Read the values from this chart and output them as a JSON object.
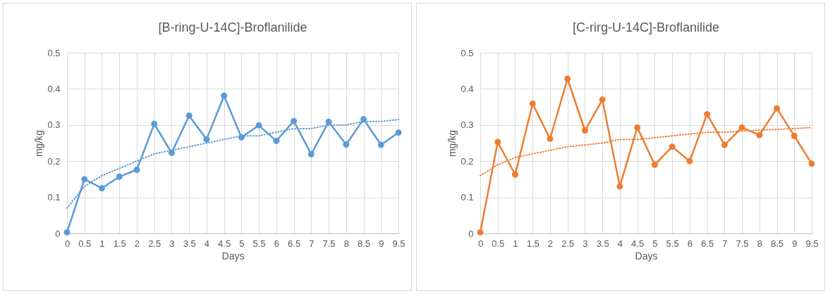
{
  "chart_data": [
    {
      "type": "line",
      "title": "[B-ring-U-14C]-Broflanilide",
      "xlabel": "Days",
      "ylabel": "mg/kg",
      "categories": [
        "0",
        "0.5",
        "1",
        "1.5",
        "2",
        "2.5",
        "3",
        "3.5",
        "4",
        "4.5",
        "5",
        "5.5",
        "6",
        "6.5",
        "7",
        "7.5",
        "8",
        "8.5",
        "9",
        "9.5"
      ],
      "ylim": [
        0,
        0.5
      ],
      "yticks": [
        0,
        0.1,
        0.2,
        0.3,
        0.4,
        0.5
      ],
      "grid": true,
      "marker": "circle",
      "line_style": "solid",
      "series": [
        {
          "color": "#5b9bd5",
          "values": [
            0.003,
            0.15,
            0.125,
            0.157,
            0.176,
            0.303,
            0.223,
            0.326,
            0.26,
            0.381,
            0.266,
            0.299,
            0.256,
            0.311,
            0.219,
            0.309,
            0.246,
            0.316,
            0.245,
            0.279
          ]
        },
        {
          "type": "line",
          "color": "#5b9bd5",
          "marker": "none",
          "line_style": "dotted",
          "values": [
            0.07,
            0.13,
            0.16,
            0.18,
            0.2,
            0.22,
            0.23,
            0.24,
            0.25,
            0.26,
            0.27,
            0.27,
            0.28,
            0.29,
            0.29,
            0.3,
            0.3,
            0.31,
            0.31,
            0.315
          ]
        }
      ]
    },
    {
      "type": "line",
      "title": "[C-rirg-U-14C]-Broflanilide",
      "xlabel": "Days",
      "ylabel": "mg/kg",
      "categories": [
        "0",
        "0.5",
        "1",
        "1.5",
        "2",
        "2.5",
        "3",
        "3.5",
        "4",
        "4.5",
        "5",
        "5.5",
        "6",
        "6.5",
        "7",
        "7.5",
        "8",
        "8.5",
        "9",
        "9.5"
      ],
      "ylim": [
        0,
        0.5
      ],
      "yticks": [
        0,
        0.1,
        0.2,
        0.3,
        0.4,
        0.5
      ],
      "grid": true,
      "marker": "circle",
      "line_style": "solid",
      "series": [
        {
          "color": "#ed7d31",
          "values": [
            0.003,
            0.253,
            0.163,
            0.359,
            0.262,
            0.428,
            0.285,
            0.37,
            0.13,
            0.293,
            0.19,
            0.24,
            0.2,
            0.33,
            0.245,
            0.293,
            0.272,
            0.346,
            0.27,
            0.193
          ]
        },
        {
          "type": "line",
          "color": "#ed7d31",
          "marker": "none",
          "line_style": "dotted",
          "values": [
            0.16,
            0.19,
            0.21,
            0.22,
            0.23,
            0.24,
            0.245,
            0.25,
            0.26,
            0.26,
            0.265,
            0.27,
            0.275,
            0.28,
            0.28,
            0.283,
            0.286,
            0.288,
            0.29,
            0.293
          ]
        }
      ]
    }
  ]
}
